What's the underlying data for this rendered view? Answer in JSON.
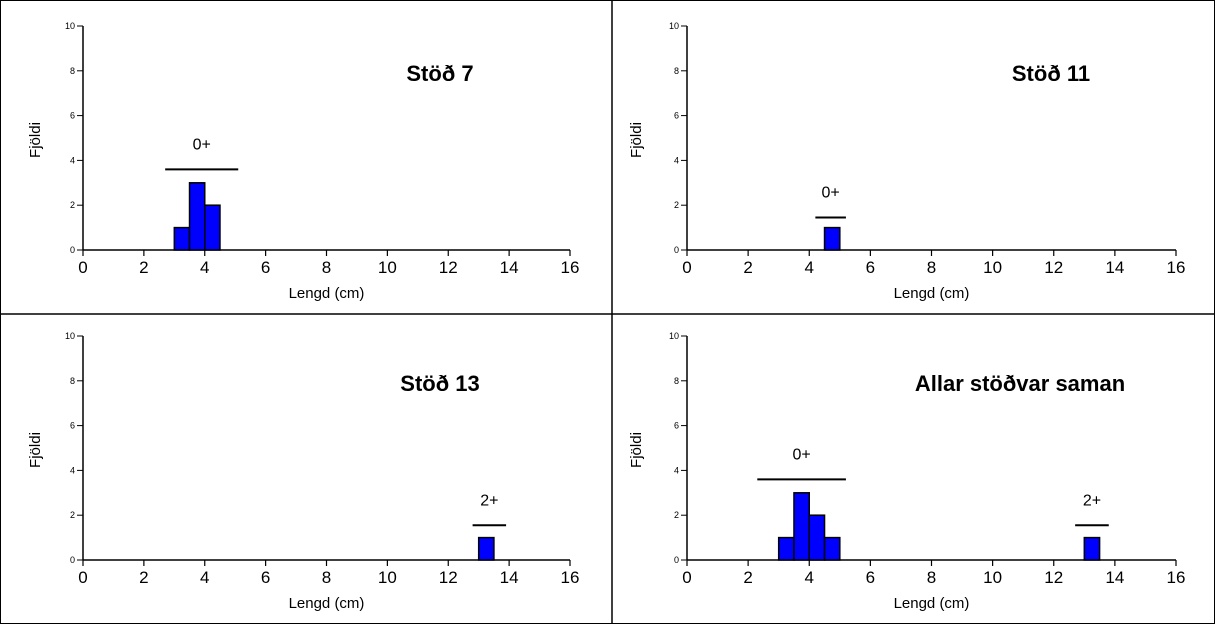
{
  "chart_data": [
    {
      "type": "bar",
      "title": "Stöð 7",
      "xlabel": "Lengd (cm)",
      "ylabel": "Fjöldi",
      "xlim": [
        0,
        16
      ],
      "ylim": [
        0,
        10
      ],
      "xticks": [
        0,
        2,
        4,
        6,
        8,
        10,
        12,
        14,
        16
      ],
      "yticks": [
        0,
        2,
        4,
        6,
        8,
        10
      ],
      "bin_width": 0.5,
      "bins": [
        {
          "x_start": 3.0,
          "count": 1
        },
        {
          "x_start": 3.5,
          "count": 3
        },
        {
          "x_start": 4.0,
          "count": 2
        }
      ],
      "age_groups": [
        {
          "label": "0+",
          "x_start": 2.7,
          "x_end": 5.1,
          "y": 3.6
        }
      ],
      "bar_color": "#0000ff",
      "grid": false
    },
    {
      "type": "bar",
      "title": "Stöð 11",
      "xlabel": "Lengd (cm)",
      "ylabel": "Fjöldi",
      "xlim": [
        0,
        16
      ],
      "ylim": [
        0,
        10
      ],
      "xticks": [
        0,
        2,
        4,
        6,
        8,
        10,
        12,
        14,
        16
      ],
      "yticks": [
        0,
        2,
        4,
        6,
        8,
        10
      ],
      "bin_width": 0.5,
      "bins": [
        {
          "x_start": 4.5,
          "count": 1
        }
      ],
      "age_groups": [
        {
          "label": "0+",
          "x_start": 4.2,
          "x_end": 5.2,
          "y": 1.45
        }
      ],
      "bar_color": "#0000ff",
      "grid": false
    },
    {
      "type": "bar",
      "title": "Stöð 13",
      "xlabel": "Lengd (cm)",
      "ylabel": "Fjöldi",
      "xlim": [
        0,
        16
      ],
      "ylim": [
        0,
        10
      ],
      "xticks": [
        0,
        2,
        4,
        6,
        8,
        10,
        12,
        14,
        16
      ],
      "yticks": [
        0,
        2,
        4,
        6,
        8,
        10
      ],
      "bin_width": 0.5,
      "bins": [
        {
          "x_start": 13.0,
          "count": 1
        }
      ],
      "age_groups": [
        {
          "label": "2+",
          "x_start": 12.8,
          "x_end": 13.9,
          "y": 1.55
        }
      ],
      "bar_color": "#0000ff",
      "grid": false
    },
    {
      "type": "bar",
      "title": "Allar stöðvar saman",
      "xlabel": "Lengd (cm)",
      "ylabel": "Fjöldi",
      "xlim": [
        0,
        16
      ],
      "ylim": [
        0,
        10
      ],
      "xticks": [
        0,
        2,
        4,
        6,
        8,
        10,
        12,
        14,
        16
      ],
      "yticks": [
        0,
        2,
        4,
        6,
        8,
        10
      ],
      "bin_width": 0.5,
      "bins": [
        {
          "x_start": 3.0,
          "count": 1
        },
        {
          "x_start": 3.5,
          "count": 3
        },
        {
          "x_start": 4.0,
          "count": 2
        },
        {
          "x_start": 4.5,
          "count": 1
        },
        {
          "x_start": 13.0,
          "count": 1
        }
      ],
      "age_groups": [
        {
          "label": "0+",
          "x_start": 2.3,
          "x_end": 5.2,
          "y": 3.6
        },
        {
          "label": "2+",
          "x_start": 12.7,
          "x_end": 13.8,
          "y": 1.55
        }
      ],
      "bar_color": "#0000ff",
      "grid": false
    }
  ]
}
